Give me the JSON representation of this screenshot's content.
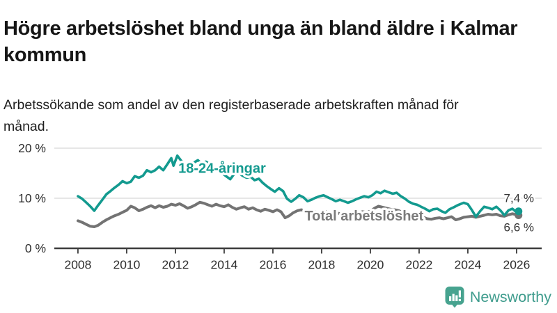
{
  "header": {
    "title": "Högre arbetslöshet bland unga än bland äldre i Kalmar kommun",
    "subtitle": "Arbetssökande som andel av den registerbaserade arbetskraften månad för månad."
  },
  "chart_data": {
    "type": "line",
    "title": "Högre arbetslöshet bland unga än bland äldre i Kalmar kommun",
    "subtitle": "Arbetssökande som andel av den registerbaserade arbetskraften månad för månad.",
    "xlabel": "",
    "ylabel": "",
    "grid": "horizontal",
    "legend_position": "inline-labels",
    "xlim": [
      2007.03,
      2027.03
    ],
    "ylim": [
      0,
      20.4
    ],
    "x_ticks": [
      2008,
      2010,
      2012,
      2014,
      2016,
      2018,
      2020,
      2022,
      2024,
      2026
    ],
    "y_ticks": [
      {
        "value": 0,
        "label": "0 %"
      },
      {
        "value": 10,
        "label": "10 %"
      },
      {
        "value": 20,
        "label": "20 %"
      }
    ],
    "series": [
      {
        "name": "18-24-åringar",
        "color": "#139a8f",
        "label_color": "#139a8f",
        "width": 3.6,
        "label_at": [
          2012.12,
          15.05
        ],
        "end_value": 7.4,
        "end_label": "7,4 %",
        "end_label_position": "above",
        "points": [
          [
            2008.0,
            10.4
          ],
          [
            2008.17,
            9.9
          ],
          [
            2008.33,
            9.2
          ],
          [
            2008.5,
            8.4
          ],
          [
            2008.67,
            7.5
          ],
          [
            2008.83,
            8.6
          ],
          [
            2009.0,
            9.7
          ],
          [
            2009.17,
            10.8
          ],
          [
            2009.33,
            11.4
          ],
          [
            2009.5,
            12.1
          ],
          [
            2009.67,
            12.7
          ],
          [
            2009.83,
            13.4
          ],
          [
            2010.0,
            13.0
          ],
          [
            2010.17,
            13.3
          ],
          [
            2010.33,
            14.4
          ],
          [
            2010.5,
            14.1
          ],
          [
            2010.67,
            14.5
          ],
          [
            2010.83,
            15.6
          ],
          [
            2011.0,
            15.2
          ],
          [
            2011.17,
            15.6
          ],
          [
            2011.33,
            16.3
          ],
          [
            2011.5,
            15.6
          ],
          [
            2011.67,
            16.8
          ],
          [
            2011.83,
            18.0
          ],
          [
            2011.92,
            16.5
          ],
          [
            2012.08,
            18.5
          ],
          [
            2012.25,
            17.4
          ],
          [
            2012.42,
            16.2
          ],
          [
            2012.58,
            16.6
          ],
          [
            2012.75,
            17.1
          ],
          [
            2012.92,
            17.6
          ],
          [
            2013.08,
            16.9
          ],
          [
            2013.25,
            17.3
          ],
          [
            2013.42,
            16.8
          ],
          [
            2013.58,
            16.2
          ],
          [
            2013.75,
            15.6
          ],
          [
            2013.92,
            15.0
          ],
          [
            2014.08,
            14.4
          ],
          [
            2014.25,
            13.8
          ],
          [
            2014.42,
            14.9
          ],
          [
            2014.58,
            15.2
          ],
          [
            2014.75,
            14.5
          ],
          [
            2014.92,
            14.1
          ],
          [
            2015.08,
            14.3
          ],
          [
            2015.25,
            13.6
          ],
          [
            2015.42,
            13.9
          ],
          [
            2015.58,
            13.1
          ],
          [
            2015.75,
            12.4
          ],
          [
            2015.92,
            11.8
          ],
          [
            2016.08,
            11.3
          ],
          [
            2016.25,
            12.0
          ],
          [
            2016.42,
            11.4
          ],
          [
            2016.58,
            9.9
          ],
          [
            2016.75,
            9.3
          ],
          [
            2016.92,
            9.9
          ],
          [
            2017.08,
            10.6
          ],
          [
            2017.25,
            10.2
          ],
          [
            2017.42,
            9.4
          ],
          [
            2017.58,
            9.7
          ],
          [
            2017.75,
            10.1
          ],
          [
            2017.92,
            10.4
          ],
          [
            2018.08,
            10.6
          ],
          [
            2018.25,
            10.2
          ],
          [
            2018.42,
            9.8
          ],
          [
            2018.58,
            9.4
          ],
          [
            2018.75,
            9.7
          ],
          [
            2018.92,
            9.4
          ],
          [
            2019.08,
            9.1
          ],
          [
            2019.25,
            9.4
          ],
          [
            2019.42,
            9.8
          ],
          [
            2019.58,
            10.1
          ],
          [
            2019.75,
            10.4
          ],
          [
            2019.92,
            10.2
          ],
          [
            2020.08,
            10.6
          ],
          [
            2020.25,
            11.3
          ],
          [
            2020.42,
            11.0
          ],
          [
            2020.58,
            11.5
          ],
          [
            2020.75,
            11.2
          ],
          [
            2020.92,
            10.9
          ],
          [
            2021.08,
            11.1
          ],
          [
            2021.25,
            10.4
          ],
          [
            2021.42,
            9.9
          ],
          [
            2021.58,
            9.3
          ],
          [
            2021.75,
            8.9
          ],
          [
            2021.92,
            8.7
          ],
          [
            2022.08,
            8.3
          ],
          [
            2022.25,
            7.9
          ],
          [
            2022.42,
            7.4
          ],
          [
            2022.58,
            7.8
          ],
          [
            2022.75,
            7.9
          ],
          [
            2022.92,
            7.4
          ],
          [
            2023.08,
            7.1
          ],
          [
            2023.25,
            7.8
          ],
          [
            2023.42,
            8.2
          ],
          [
            2023.58,
            8.6
          ],
          [
            2023.83,
            9.1
          ],
          [
            2024.0,
            8.8
          ],
          [
            2024.17,
            7.6
          ],
          [
            2024.33,
            6.3
          ],
          [
            2024.5,
            7.4
          ],
          [
            2024.67,
            8.3
          ],
          [
            2024.83,
            8.1
          ],
          [
            2025.0,
            7.8
          ],
          [
            2025.17,
            8.3
          ],
          [
            2025.33,
            7.6
          ],
          [
            2025.5,
            6.6
          ],
          [
            2025.67,
            7.6
          ],
          [
            2025.83,
            7.9
          ],
          [
            2026.0,
            7.2
          ],
          [
            2026.08,
            7.4
          ]
        ]
      },
      {
        "name": "Total arbetslöshet",
        "color": "#737373",
        "label_color": "#7b7b7b",
        "width": 4,
        "label_at": [
          2017.3,
          5.55
        ],
        "end_value": 6.6,
        "end_label": "6,6 %",
        "end_label_position": "below",
        "points": [
          [
            2008.0,
            5.5
          ],
          [
            2008.17,
            5.2
          ],
          [
            2008.33,
            4.8
          ],
          [
            2008.5,
            4.4
          ],
          [
            2008.67,
            4.3
          ],
          [
            2008.83,
            4.6
          ],
          [
            2009.0,
            5.2
          ],
          [
            2009.17,
            5.7
          ],
          [
            2009.33,
            6.1
          ],
          [
            2009.5,
            6.5
          ],
          [
            2009.67,
            6.8
          ],
          [
            2009.83,
            7.2
          ],
          [
            2010.0,
            7.6
          ],
          [
            2010.17,
            8.4
          ],
          [
            2010.33,
            8.1
          ],
          [
            2010.5,
            7.5
          ],
          [
            2010.67,
            7.8
          ],
          [
            2010.83,
            8.2
          ],
          [
            2011.0,
            8.5
          ],
          [
            2011.17,
            8.1
          ],
          [
            2011.33,
            8.5
          ],
          [
            2011.5,
            8.2
          ],
          [
            2011.67,
            8.4
          ],
          [
            2011.83,
            8.8
          ],
          [
            2012.0,
            8.6
          ],
          [
            2012.17,
            8.9
          ],
          [
            2012.33,
            8.5
          ],
          [
            2012.5,
            8.0
          ],
          [
            2012.67,
            8.3
          ],
          [
            2012.83,
            8.7
          ],
          [
            2013.0,
            9.2
          ],
          [
            2013.17,
            9.0
          ],
          [
            2013.33,
            8.7
          ],
          [
            2013.5,
            8.4
          ],
          [
            2013.67,
            8.8
          ],
          [
            2013.83,
            8.5
          ],
          [
            2014.0,
            8.3
          ],
          [
            2014.17,
            8.7
          ],
          [
            2014.33,
            8.2
          ],
          [
            2014.5,
            7.8
          ],
          [
            2014.67,
            8.1
          ],
          [
            2014.83,
            8.3
          ],
          [
            2015.0,
            7.8
          ],
          [
            2015.17,
            8.1
          ],
          [
            2015.33,
            7.7
          ],
          [
            2015.5,
            7.4
          ],
          [
            2015.67,
            7.8
          ],
          [
            2015.83,
            7.6
          ],
          [
            2016.0,
            7.3
          ],
          [
            2016.17,
            7.7
          ],
          [
            2016.33,
            7.3
          ],
          [
            2016.5,
            6.1
          ],
          [
            2016.67,
            6.5
          ],
          [
            2016.83,
            7.1
          ],
          [
            2017.0,
            7.5
          ],
          [
            2017.17,
            7.7
          ],
          [
            2017.33,
            7.4
          ],
          [
            2017.5,
            7.2
          ],
          [
            2017.67,
            7.4
          ],
          [
            2017.83,
            7.2
          ],
          [
            2018.0,
            7.1
          ],
          [
            2018.17,
            7.3
          ],
          [
            2018.33,
            7.0
          ],
          [
            2018.5,
            6.8
          ],
          [
            2018.67,
            7.0
          ],
          [
            2018.83,
            6.9
          ],
          [
            2019.0,
            6.8
          ],
          [
            2019.17,
            7.0
          ],
          [
            2019.33,
            6.9
          ],
          [
            2019.5,
            7.1
          ],
          [
            2019.67,
            7.3
          ],
          [
            2019.83,
            7.2
          ],
          [
            2020.0,
            7.4
          ],
          [
            2020.17,
            8.0
          ],
          [
            2020.33,
            8.4
          ],
          [
            2020.5,
            8.2
          ],
          [
            2020.67,
            8.0
          ],
          [
            2020.83,
            7.8
          ],
          [
            2021.0,
            7.7
          ],
          [
            2021.17,
            7.5
          ],
          [
            2021.33,
            7.2
          ],
          [
            2021.5,
            7.0
          ],
          [
            2021.67,
            6.8
          ],
          [
            2021.83,
            6.6
          ],
          [
            2022.0,
            6.4
          ],
          [
            2022.17,
            6.2
          ],
          [
            2022.33,
            5.9
          ],
          [
            2022.5,
            5.8
          ],
          [
            2022.67,
            6.0
          ],
          [
            2022.83,
            6.1
          ],
          [
            2023.0,
            5.9
          ],
          [
            2023.17,
            6.1
          ],
          [
            2023.33,
            6.3
          ],
          [
            2023.5,
            5.7
          ],
          [
            2023.67,
            5.9
          ],
          [
            2023.83,
            6.2
          ],
          [
            2024.0,
            6.3
          ],
          [
            2024.17,
            6.4
          ],
          [
            2024.33,
            6.2
          ],
          [
            2024.5,
            6.4
          ],
          [
            2024.67,
            6.6
          ],
          [
            2024.83,
            6.8
          ],
          [
            2025.0,
            6.7
          ],
          [
            2025.17,
            6.8
          ],
          [
            2025.33,
            6.5
          ],
          [
            2025.5,
            6.4
          ],
          [
            2025.67,
            6.7
          ],
          [
            2025.83,
            6.9
          ],
          [
            2026.0,
            6.7
          ],
          [
            2026.08,
            6.6
          ]
        ]
      }
    ]
  },
  "logo": {
    "name": "Newsworthy",
    "icon": "newsworthy-chart-bubble-icon",
    "icon_color": "#47a38f",
    "text_color": "#3f9c8d"
  }
}
